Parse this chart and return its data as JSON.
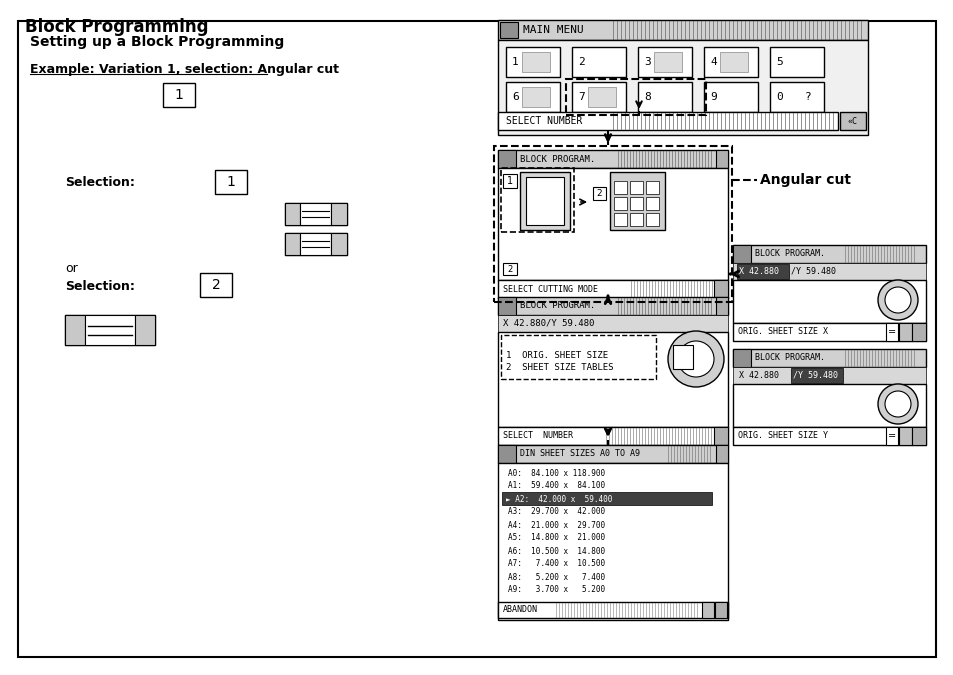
{
  "title": "Block Programming",
  "section_title": "Setting up a Block Programming",
  "example_label": "Example: Variation 1, selection: Angular cut",
  "right_annotation": "Angular cut",
  "bg_color": "#ffffff",
  "border_color": "#000000"
}
